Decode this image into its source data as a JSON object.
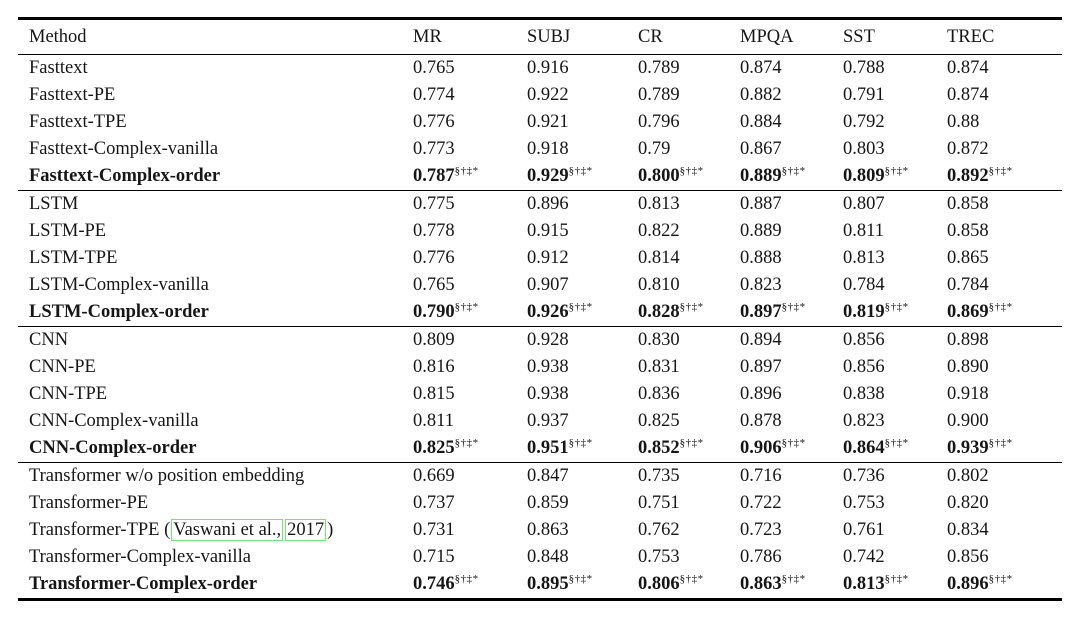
{
  "colors": {
    "text": "#161616",
    "rule": "#000000",
    "citation_box_border": "#76e476",
    "background": "#ffffff"
  },
  "table": {
    "columns": [
      "Method",
      "MR",
      "SUBJ",
      "CR",
      "MPQA",
      "SST",
      "TREC"
    ],
    "significance_marks": "§†‡*",
    "groups": [
      {
        "rows": [
          {
            "method": "Fasttext",
            "bold": false,
            "sup": false,
            "values": [
              "0.765",
              "0.916",
              "0.789",
              "0.874",
              "0.788",
              "0.874"
            ]
          },
          {
            "method": "Fasttext-PE",
            "bold": false,
            "sup": false,
            "values": [
              "0.774",
              "0.922",
              "0.789",
              "0.882",
              "0.791",
              "0.874"
            ]
          },
          {
            "method": "Fasttext-TPE",
            "bold": false,
            "sup": false,
            "values": [
              "0.776",
              "0.921",
              "0.796",
              "0.884",
              "0.792",
              "0.88"
            ]
          },
          {
            "method": "Fasttext-Complex-vanilla",
            "bold": false,
            "sup": false,
            "values": [
              "0.773",
              "0.918",
              "0.79",
              "0.867",
              "0.803",
              "0.872"
            ]
          },
          {
            "method": "Fasttext-Complex-order",
            "bold": true,
            "sup": true,
            "values": [
              "0.787",
              "0.929",
              "0.800",
              "0.889",
              "0.809",
              "0.892"
            ]
          }
        ]
      },
      {
        "rows": [
          {
            "method": "LSTM",
            "bold": false,
            "sup": false,
            "values": [
              "0.775",
              "0.896",
              "0.813",
              "0.887",
              "0.807",
              "0.858"
            ]
          },
          {
            "method": "LSTM-PE",
            "bold": false,
            "sup": false,
            "values": [
              "0.778",
              "0.915",
              "0.822",
              "0.889",
              "0.811",
              "0.858"
            ]
          },
          {
            "method": "LSTM-TPE",
            "bold": false,
            "sup": false,
            "values": [
              "0.776",
              "0.912",
              "0.814",
              "0.888",
              "0.813",
              "0.865"
            ]
          },
          {
            "method": "LSTM-Complex-vanilla",
            "bold": false,
            "sup": false,
            "values": [
              "0.765",
              "0.907",
              "0.810",
              "0.823",
              "0.784",
              "0.784"
            ]
          },
          {
            "method": "LSTM-Complex-order",
            "bold": true,
            "sup": true,
            "values": [
              "0.790",
              "0.926",
              "0.828",
              "0.897",
              "0.819",
              "0.869"
            ]
          }
        ]
      },
      {
        "rows": [
          {
            "method": "CNN",
            "bold": false,
            "sup": false,
            "values": [
              "0.809",
              "0.928",
              "0.830",
              "0.894",
              "0.856",
              "0.898"
            ]
          },
          {
            "method": "CNN-PE",
            "bold": false,
            "sup": false,
            "values": [
              "0.816",
              "0.938",
              "0.831",
              "0.897",
              "0.856",
              "0.890"
            ]
          },
          {
            "method": "CNN-TPE",
            "bold": false,
            "sup": false,
            "values": [
              "0.815",
              "0.938",
              "0.836",
              "0.896",
              "0.838",
              "0.918"
            ]
          },
          {
            "method": "CNN-Complex-vanilla",
            "bold": false,
            "sup": false,
            "values": [
              "0.811",
              "0.937",
              "0.825",
              "0.878",
              "0.823",
              "0.900"
            ]
          },
          {
            "method": "CNN-Complex-order",
            "bold": true,
            "sup": true,
            "values": [
              "0.825",
              "0.951",
              "0.852",
              "0.906",
              "0.864",
              "0.939"
            ]
          }
        ]
      },
      {
        "rows": [
          {
            "method": "Transformer w/o position embedding",
            "bold": false,
            "sup": false,
            "values": [
              "0.669",
              "0.847",
              "0.735",
              "0.716",
              "0.736",
              "0.802"
            ]
          },
          {
            "method": "Transformer-PE",
            "bold": false,
            "sup": false,
            "values": [
              "0.737",
              "0.859",
              "0.751",
              "0.722",
              "0.753",
              "0.820"
            ]
          },
          {
            "method": "Transformer-TPE (Vaswani et al., 2017)",
            "bold": false,
            "sup": false,
            "method_parts": {
              "prefix": "Transformer-TPE (",
              "box1": "Vaswani et al.,",
              "box2": "2017",
              "suffix": ")"
            },
            "values": [
              "0.731",
              "0.863",
              "0.762",
              "0.723",
              "0.761",
              "0.834"
            ]
          },
          {
            "method": "Transformer-Complex-vanilla",
            "bold": false,
            "sup": false,
            "values": [
              "0.715",
              "0.848",
              "0.753",
              "0.786",
              "0.742",
              "0.856"
            ]
          },
          {
            "method": "Transformer-Complex-order",
            "bold": true,
            "sup": true,
            "values": [
              "0.746",
              "0.895",
              "0.806",
              "0.863",
              "0.813",
              "0.896"
            ]
          }
        ]
      }
    ]
  }
}
